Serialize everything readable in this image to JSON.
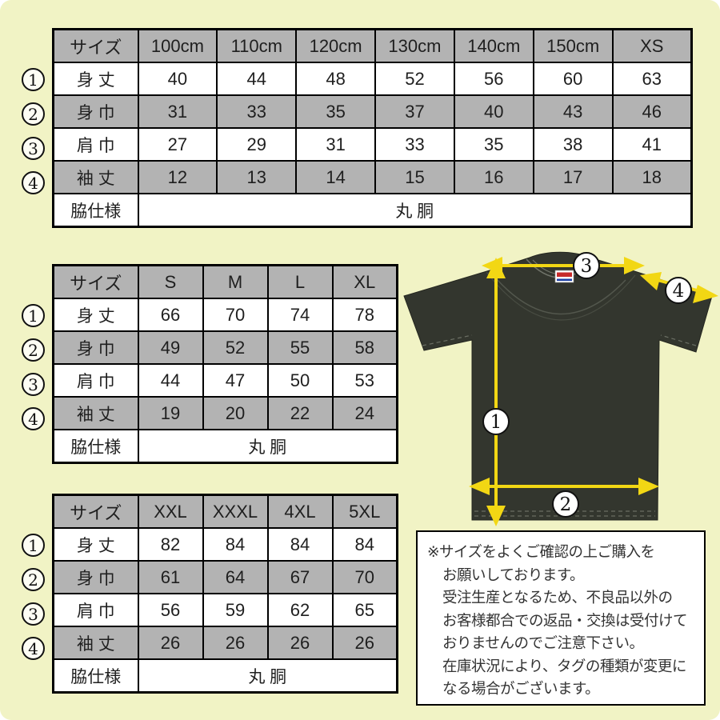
{
  "colors": {
    "background": "#f1f3c5",
    "table_shade": "#b3b3b3",
    "arrow_yellow": "#f2d714",
    "shirt_dark": "#33362e"
  },
  "tables": [
    {
      "name": "kids-to-xs",
      "header": [
        "サイズ",
        "100cm",
        "110cm",
        "120cm",
        "130cm",
        "140cm",
        "150cm",
        "XS"
      ],
      "rows": [
        {
          "badge": "1",
          "label": "身 丈",
          "shaded": false,
          "values": [
            "40",
            "44",
            "48",
            "52",
            "56",
            "60",
            "63"
          ]
        },
        {
          "badge": "2",
          "label": "身 巾",
          "shaded": true,
          "values": [
            "31",
            "33",
            "35",
            "37",
            "40",
            "43",
            "46"
          ]
        },
        {
          "badge": "3",
          "label": "肩 巾",
          "shaded": false,
          "values": [
            "27",
            "29",
            "31",
            "33",
            "35",
            "38",
            "41"
          ]
        },
        {
          "badge": "4",
          "label": "袖 丈",
          "shaded": true,
          "values": [
            "12",
            "13",
            "14",
            "15",
            "16",
            "17",
            "18"
          ]
        }
      ],
      "footer_label": "脇仕様",
      "footer_value": "丸 胴"
    },
    {
      "name": "s-to-xl",
      "header": [
        "サイズ",
        "S",
        "M",
        "L",
        "XL"
      ],
      "rows": [
        {
          "badge": "1",
          "label": "身 丈",
          "shaded": false,
          "values": [
            "66",
            "70",
            "74",
            "78"
          ]
        },
        {
          "badge": "2",
          "label": "身 巾",
          "shaded": true,
          "values": [
            "49",
            "52",
            "55",
            "58"
          ]
        },
        {
          "badge": "3",
          "label": "肩 巾",
          "shaded": false,
          "values": [
            "44",
            "47",
            "50",
            "53"
          ]
        },
        {
          "badge": "4",
          "label": "袖 丈",
          "shaded": true,
          "values": [
            "19",
            "20",
            "22",
            "24"
          ]
        }
      ],
      "footer_label": "脇仕様",
      "footer_value": "丸 胴"
    },
    {
      "name": "xxl-to-5xl",
      "header": [
        "サイズ",
        "XXL",
        "XXXL",
        "4XL",
        "5XL"
      ],
      "rows": [
        {
          "badge": "1",
          "label": "身 丈",
          "shaded": false,
          "values": [
            "82",
            "84",
            "84",
            "84"
          ]
        },
        {
          "badge": "2",
          "label": "身 巾",
          "shaded": true,
          "values": [
            "61",
            "64",
            "67",
            "70"
          ]
        },
        {
          "badge": "3",
          "label": "肩 巾",
          "shaded": false,
          "values": [
            "56",
            "59",
            "62",
            "65"
          ]
        },
        {
          "badge": "4",
          "label": "袖 丈",
          "shaded": true,
          "values": [
            "26",
            "26",
            "26",
            "26"
          ]
        }
      ],
      "footer_label": "脇仕様",
      "footer_value": "丸 胴"
    }
  ],
  "diagram": {
    "markers": {
      "m1": "1",
      "m2": "2",
      "m3": "3",
      "m4": "4"
    }
  },
  "note": {
    "lines": [
      "※サイズをよくご確認の上ご購入を",
      "お願いしております。",
      "受注生産となるため、不良品以外の",
      "お客様都合での返品・交換は受付けて",
      "おりませんのでご注意下さい。",
      "在庫状況により、タグの種類が変更に",
      "なる場合がございます。"
    ]
  }
}
